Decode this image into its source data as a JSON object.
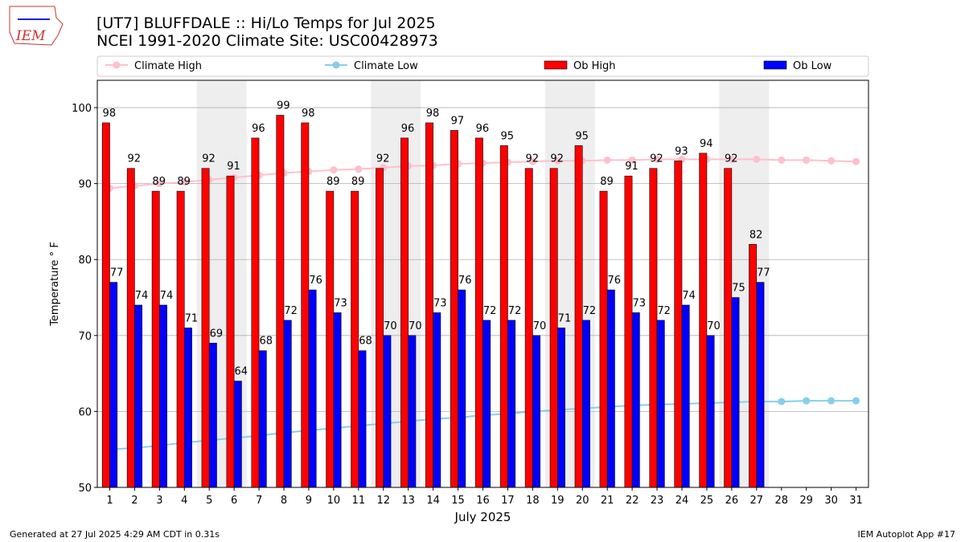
{
  "logo_text": "IEM",
  "footer_left": "Generated at 27 Jul 2025 4:29 AM CDT in 0.31s",
  "footer_right": "IEM Autoplot App #17",
  "chart_data": {
    "type": "bar",
    "title": "[UT7] BLUFFDALE  :: Hi/Lo Temps for Jul 2025",
    "subtitle": "NCEI 1991-2020 Climate Site: USC00428973",
    "x_label": "July 2025",
    "y_label": "Temperature ° F",
    "x": [
      1,
      2,
      3,
      4,
      5,
      6,
      7,
      8,
      9,
      10,
      11,
      12,
      13,
      14,
      15,
      16,
      17,
      18,
      19,
      20,
      21,
      22,
      23,
      24,
      25,
      26,
      27,
      28,
      29,
      30,
      31
    ],
    "xlim": [
      0.5,
      31.5
    ],
    "xticks": [
      1,
      2,
      3,
      4,
      5,
      6,
      7,
      8,
      9,
      10,
      11,
      12,
      13,
      14,
      15,
      16,
      17,
      18,
      19,
      20,
      21,
      22,
      23,
      24,
      25,
      26,
      27,
      28,
      29,
      30,
      31
    ],
    "ylim": [
      50,
      103.6
    ],
    "yticks": [
      50,
      60,
      70,
      80,
      90,
      100
    ],
    "grid": true,
    "legend": "top",
    "shaded_spans": [
      [
        4.5,
        6.5
      ],
      [
        11.5,
        13.5
      ],
      [
        18.5,
        20.5
      ],
      [
        25.5,
        27.5
      ]
    ],
    "series": [
      {
        "name": "Climate High",
        "kind": "line",
        "color": "#ffc0cb",
        "values": [
          89.4,
          89.7,
          90.0,
          90.2,
          90.5,
          90.8,
          91.1,
          91.4,
          91.6,
          91.8,
          91.9,
          92.1,
          92.3,
          92.4,
          92.6,
          92.7,
          92.8,
          92.9,
          93.0,
          93.0,
          93.1,
          93.1,
          93.2,
          93.2,
          93.2,
          93.2,
          93.2,
          93.1,
          93.1,
          93.0,
          92.9
        ]
      },
      {
        "name": "Climate Low",
        "kind": "line",
        "color": "#87ceeb",
        "values": [
          55.0,
          55.2,
          55.5,
          55.9,
          56.2,
          56.5,
          56.8,
          57.2,
          57.5,
          57.8,
          58.1,
          58.4,
          58.7,
          59.0,
          59.2,
          59.5,
          59.7,
          60.0,
          60.2,
          60.4,
          60.6,
          60.8,
          60.9,
          61.0,
          61.1,
          61.2,
          61.3,
          61.3,
          61.4,
          61.4,
          61.4
        ]
      },
      {
        "name": "Ob High",
        "kind": "bar",
        "offset": -0.15,
        "color": "#ff0000",
        "values": [
          98,
          92,
          89,
          89,
          92,
          91,
          96,
          99,
          98,
          89,
          89,
          92,
          96,
          98,
          97,
          96,
          95,
          92,
          92,
          95,
          89,
          91,
          92,
          93,
          94,
          92,
          82,
          null,
          null,
          null,
          null
        ]
      },
      {
        "name": "Ob Low",
        "kind": "bar",
        "offset": 0.15,
        "color": "#0000ff",
        "values": [
          77,
          74,
          74,
          71,
          69,
          64,
          68,
          72,
          76,
          73,
          68,
          70,
          70,
          73,
          76,
          72,
          72,
          70,
          71,
          72,
          76,
          73,
          72,
          74,
          70,
          75,
          77,
          null,
          null,
          null,
          null
        ]
      }
    ]
  }
}
